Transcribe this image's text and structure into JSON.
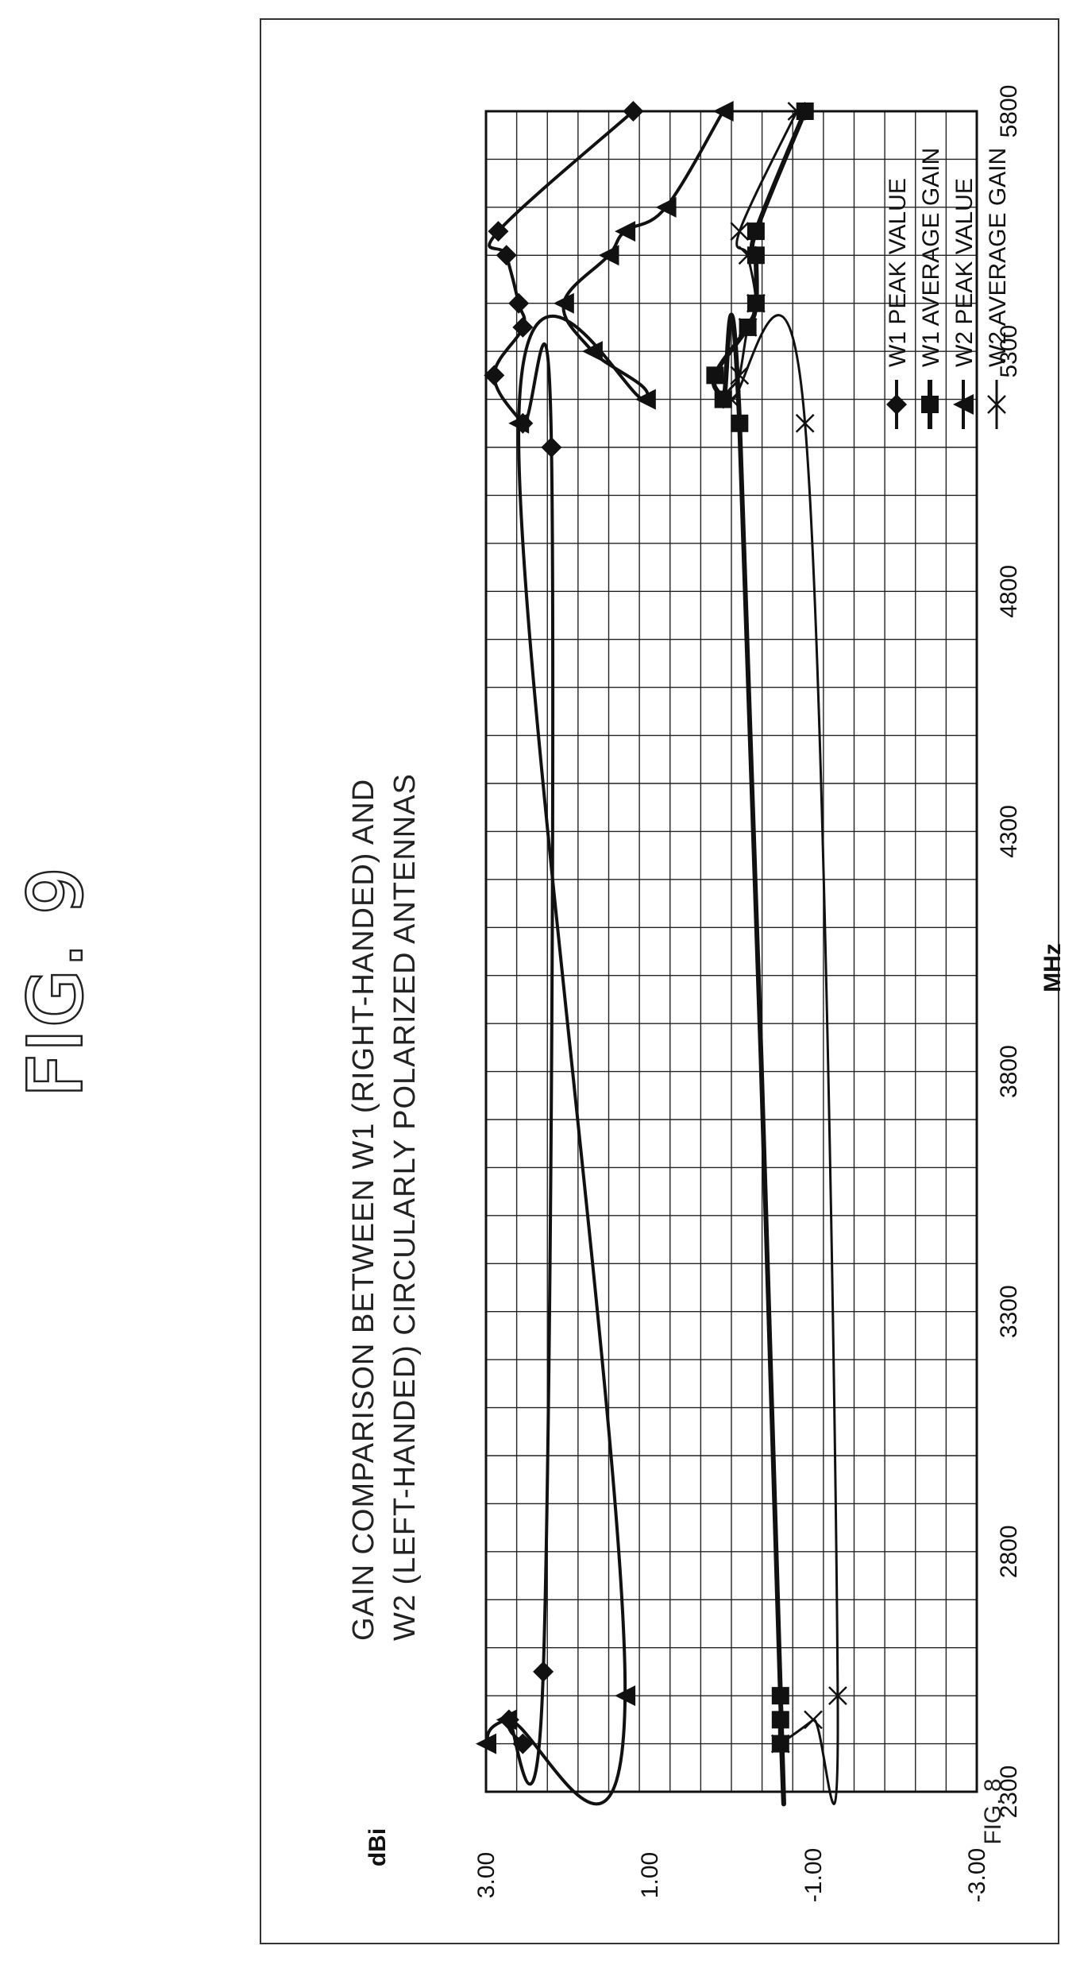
{
  "figure": {
    "title": "FIG. 9",
    "caption": "FIG. 8"
  },
  "chart_data": {
    "type": "line",
    "title_lines": [
      "GAIN COMPARISON BETWEEN W1 (RIGHT-HANDED) AND",
      "W2 (LEFT-HANDED) CIRCULARLY POLARIZED ANTENNAS"
    ],
    "xlabel": "MHz",
    "ylabel": "dBi",
    "xlim": [
      2300,
      5800
    ],
    "ylim": [
      -3.0,
      3.0
    ],
    "x_ticks": [
      "2300",
      "2800",
      "3300",
      "3800",
      "4300",
      "4800",
      "5300",
      "5800"
    ],
    "y_ticks": [
      "3.00",
      "1.00",
      "-1.00",
      "-3.00"
    ],
    "grid": true,
    "legend_position": "top-right",
    "series": [
      {
        "name": "W1 PEAK VALUE",
        "marker": "diamond",
        "x": [
          2400,
          2450,
          2550,
          5100,
          5150,
          5250,
          5350,
          5400,
          5500,
          5550,
          5800
        ],
        "y": [
          2.55,
          2.72,
          2.3,
          2.2,
          2.55,
          2.9,
          2.55,
          2.6,
          2.75,
          2.85,
          1.2
        ]
      },
      {
        "name": "W1 AVERAGE GAIN",
        "marker": "square",
        "x": [
          2400,
          2450,
          2500,
          5150,
          5200,
          5250,
          5350,
          5400,
          5500,
          5550,
          5800
        ],
        "y": [
          -0.6,
          -0.6,
          -0.6,
          -0.1,
          0.1,
          0.2,
          -0.2,
          -0.3,
          -0.3,
          -0.3,
          -0.9
        ]
      },
      {
        "name": "W2 PEAK VALUE",
        "marker": "triangle",
        "x": [
          2400,
          2450,
          2500,
          5150,
          5200,
          5300,
          5400,
          5500,
          5550,
          5600,
          5800
        ],
        "y": [
          3.0,
          2.75,
          1.3,
          2.6,
          1.05,
          1.7,
          2.05,
          1.5,
          1.3,
          0.8,
          0.1
        ]
      },
      {
        "name": "W2 AVERAGE GAIN",
        "marker": "x",
        "x": [
          2400,
          2450,
          2500,
          5150,
          5200,
          5250,
          5350,
          5400,
          5500,
          5550,
          5800
        ],
        "y": [
          -0.6,
          -1.0,
          -1.3,
          -0.9,
          0.0,
          -0.1,
          -0.2,
          -0.3,
          -0.2,
          -0.1,
          -0.8
        ]
      }
    ]
  }
}
